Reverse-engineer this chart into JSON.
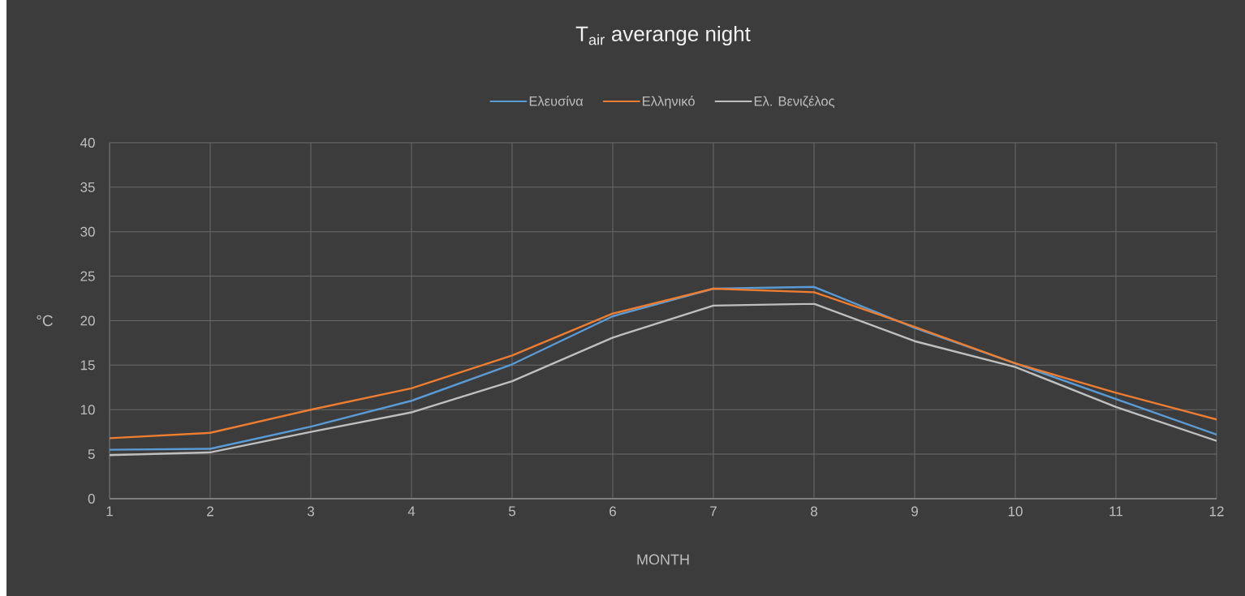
{
  "chart_data": {
    "type": "line",
    "title": "T$_{air}$ averange night",
    "xlabel": "MONTH",
    "ylabel": "°C",
    "x": [
      1,
      2,
      3,
      4,
      5,
      6,
      7,
      8,
      9,
      10,
      11,
      12
    ],
    "series": [
      {
        "name": "Ελευσίνα",
        "color": "#5b9bd5",
        "values": [
          5.5,
          5.6,
          8.1,
          11.0,
          15.1,
          20.5,
          23.6,
          23.8,
          19.2,
          15.2,
          11.2,
          7.2
        ]
      },
      {
        "name": "Ελληνικό",
        "color": "#ed7d31",
        "values": [
          6.8,
          7.4,
          10.0,
          12.4,
          16.1,
          20.8,
          23.6,
          23.2,
          19.3,
          15.2,
          11.9,
          8.9
        ]
      },
      {
        "name": "Ελ. Βενιζέλος",
        "color": "#bfbfbf",
        "values": [
          4.9,
          5.2,
          7.5,
          9.7,
          13.2,
          18.1,
          21.7,
          21.9,
          17.7,
          14.8,
          10.3,
          6.5
        ]
      }
    ],
    "xlim": [
      1,
      12
    ],
    "ylim": [
      0,
      40
    ],
    "xticks": [
      1,
      2,
      3,
      4,
      5,
      6,
      7,
      8,
      9,
      10,
      11,
      12
    ],
    "yticks": [
      0,
      5,
      10,
      15,
      20,
      25,
      30,
      35,
      40
    ],
    "grid": true,
    "legend": "top",
    "line_style": "solid"
  }
}
